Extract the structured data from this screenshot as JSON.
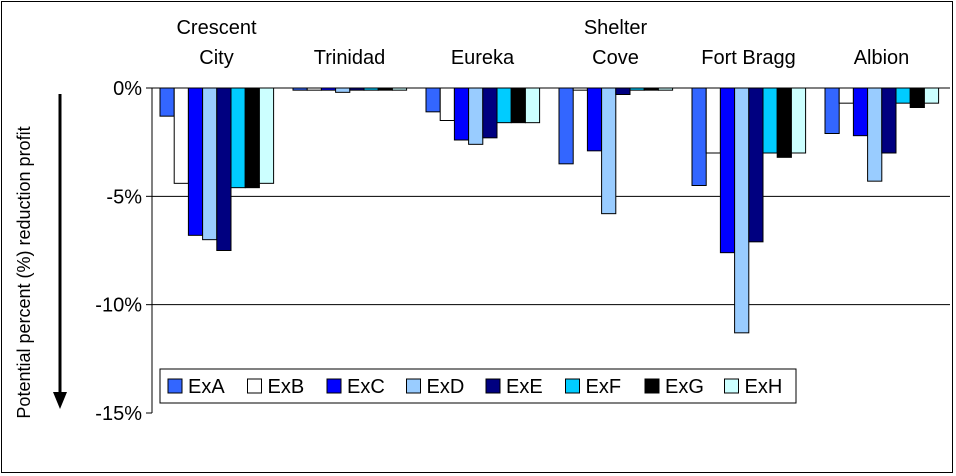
{
  "chart_data": {
    "type": "bar",
    "title": "",
    "xlabel": "",
    "ylabel": "Potential percent (%) reduction profit",
    "ylim": [
      -15,
      0
    ],
    "yticks": [
      0,
      -5,
      -10,
      -15
    ],
    "ytick_labels": [
      "0%",
      "-5%",
      "-10%",
      "-15%"
    ],
    "grid": true,
    "categories": [
      "Crescent City",
      "Trinidad",
      "Eureka",
      "Shelter Cove",
      "Fort Bragg",
      "Albion"
    ],
    "category_labels": [
      [
        "Crescent",
        "City"
      ],
      [
        "Trinidad"
      ],
      [
        "Eureka"
      ],
      [
        "Shelter",
        "Cove"
      ],
      [
        "Fort Bragg"
      ],
      [
        "Albion"
      ]
    ],
    "legend_position": "bottom-left",
    "series": [
      {
        "name": "ExA",
        "color": "#3366ff",
        "values": [
          -1.3,
          -0.1,
          -1.1,
          -3.5,
          -4.5,
          -2.1
        ]
      },
      {
        "name": "ExB",
        "color": "#ffffff",
        "values": [
          -4.4,
          -0.1,
          -1.5,
          -0.1,
          -3.0,
          -0.7
        ]
      },
      {
        "name": "ExC",
        "color": "#0000ff",
        "values": [
          -6.8,
          -0.1,
          -2.4,
          -2.9,
          -7.6,
          -2.2
        ]
      },
      {
        "name": "ExD",
        "color": "#99ccff",
        "values": [
          -7.0,
          -0.2,
          -2.6,
          -5.8,
          -11.3,
          -4.3
        ]
      },
      {
        "name": "ExE",
        "color": "#000080",
        "values": [
          -7.5,
          -0.1,
          -2.3,
          -0.3,
          -7.1,
          -3.0
        ]
      },
      {
        "name": "ExF",
        "color": "#00ccff",
        "values": [
          -4.6,
          -0.1,
          -1.6,
          -0.1,
          -3.0,
          -0.7
        ]
      },
      {
        "name": "ExG",
        "color": "#000000",
        "values": [
          -4.6,
          -0.1,
          -1.6,
          -0.1,
          -3.2,
          -0.9
        ]
      },
      {
        "name": "ExH",
        "color": "#ccffff",
        "values": [
          -4.4,
          -0.1,
          -1.6,
          -0.1,
          -3.0,
          -0.7
        ]
      }
    ]
  }
}
